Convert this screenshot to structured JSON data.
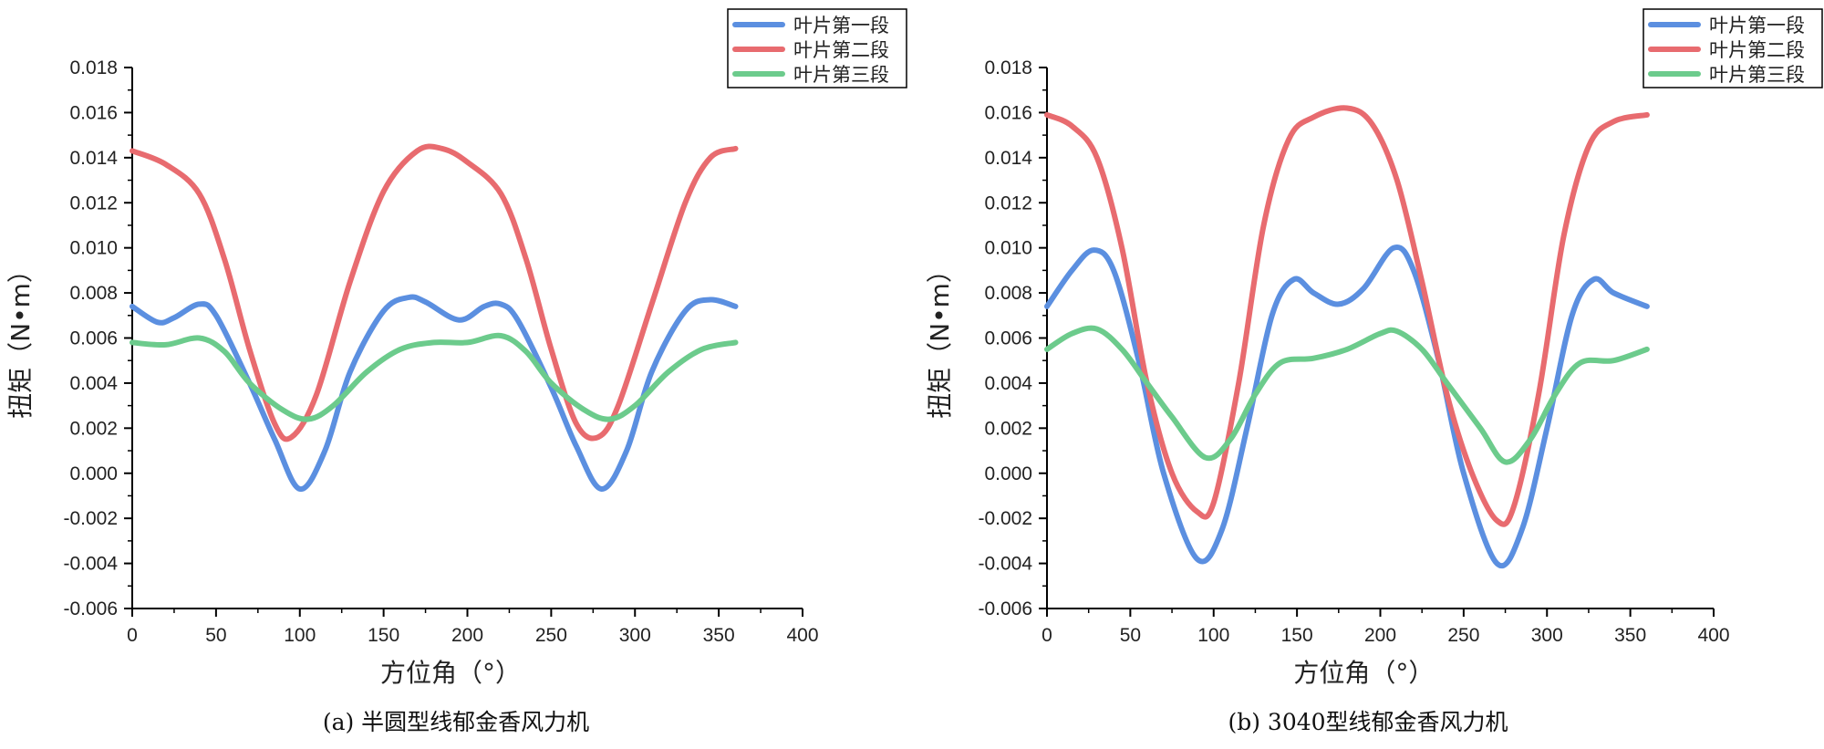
{
  "chart_data": [
    {
      "type": "line",
      "caption": "(a) 半圆型线郁金香风力机",
      "xlabel": "方位角（°）",
      "ylabel": "扭矩（N•m）",
      "xlim": [
        0,
        400
      ],
      "ylim": [
        -0.006,
        0.018
      ],
      "xticks": [
        "0",
        "50",
        "100",
        "150",
        "200",
        "250",
        "300",
        "350",
        "400"
      ],
      "yticks": [
        "-0.006",
        "-0.004",
        "-0.002",
        "0.000",
        "0.002",
        "0.004",
        "0.006",
        "0.008",
        "0.010",
        "0.012",
        "0.014",
        "0.016",
        "0.018"
      ],
      "legend_position": "top-right",
      "series": [
        {
          "name": "叶片第一段",
          "color": "#5b8fe0",
          "x": [
            0,
            15,
            25,
            40,
            50,
            70,
            85,
            100,
            115,
            130,
            150,
            165,
            175,
            195,
            210,
            220,
            230,
            250,
            265,
            280,
            295,
            310,
            330,
            345,
            360
          ],
          "y": [
            0.0074,
            0.0067,
            0.0069,
            0.0075,
            0.007,
            0.004,
            0.0015,
            -0.0007,
            0.001,
            0.0045,
            0.0072,
            0.0078,
            0.0076,
            0.0068,
            0.0074,
            0.0075,
            0.0068,
            0.0038,
            0.0012,
            -0.0007,
            0.001,
            0.0045,
            0.0072,
            0.0077,
            0.0074
          ]
        },
        {
          "name": "叶片第二段",
          "color": "#e86b6f",
          "x": [
            0,
            20,
            40,
            55,
            70,
            85,
            95,
            110,
            130,
            150,
            170,
            185,
            200,
            220,
            235,
            250,
            265,
            278,
            290,
            310,
            330,
            345,
            360
          ],
          "y": [
            0.0143,
            0.0137,
            0.0124,
            0.0095,
            0.0055,
            0.0022,
            0.0016,
            0.0035,
            0.0085,
            0.0125,
            0.0143,
            0.0144,
            0.0138,
            0.0124,
            0.0095,
            0.0055,
            0.0022,
            0.0016,
            0.003,
            0.0075,
            0.012,
            0.014,
            0.0144
          ]
        },
        {
          "name": "叶片第三段",
          "color": "#6ccb8c",
          "x": [
            0,
            20,
            40,
            55,
            70,
            90,
            105,
            120,
            140,
            160,
            180,
            200,
            220,
            235,
            250,
            270,
            285,
            300,
            320,
            340,
            360
          ],
          "y": [
            0.0058,
            0.0057,
            0.006,
            0.0054,
            0.004,
            0.0028,
            0.0024,
            0.003,
            0.0045,
            0.0055,
            0.0058,
            0.0058,
            0.0061,
            0.0054,
            0.004,
            0.0028,
            0.0024,
            0.003,
            0.0045,
            0.0055,
            0.0058
          ]
        }
      ]
    },
    {
      "type": "line",
      "caption": "(b) 3040型线郁金香风力机",
      "xlabel": "方位角（°）",
      "ylabel": "扭矩（N•m）",
      "xlim": [
        0,
        400
      ],
      "ylim": [
        -0.006,
        0.018
      ],
      "xticks": [
        "0",
        "50",
        "100",
        "150",
        "200",
        "250",
        "300",
        "350",
        "400"
      ],
      "yticks": [
        "-0.006",
        "-0.004",
        "-0.002",
        "0.000",
        "0.002",
        "0.004",
        "0.006",
        "0.008",
        "0.010",
        "0.012",
        "0.014",
        "0.016",
        "0.018"
      ],
      "legend_position": "top-right",
      "series": [
        {
          "name": "叶片第一段",
          "color": "#5b8fe0",
          "x": [
            0,
            15,
            28,
            40,
            55,
            70,
            90,
            105,
            120,
            135,
            148,
            160,
            175,
            190,
            208,
            220,
            235,
            250,
            270,
            285,
            300,
            315,
            328,
            340,
            360
          ],
          "y": [
            0.0074,
            0.009,
            0.0099,
            0.009,
            0.005,
            0.0,
            -0.0038,
            -0.0025,
            0.002,
            0.007,
            0.0086,
            0.008,
            0.0075,
            0.0082,
            0.01,
            0.009,
            0.005,
            0.0,
            -0.004,
            -0.0025,
            0.002,
            0.007,
            0.0086,
            0.008,
            0.0074
          ]
        },
        {
          "name": "叶片第二段",
          "color": "#e86b6f",
          "x": [
            0,
            15,
            30,
            45,
            60,
            75,
            90,
            100,
            115,
            130,
            145,
            160,
            180,
            195,
            210,
            225,
            240,
            255,
            270,
            280,
            295,
            310,
            325,
            340,
            360
          ],
          "y": [
            0.0159,
            0.0154,
            0.014,
            0.01,
            0.004,
            0.0,
            -0.0017,
            -0.0013,
            0.004,
            0.011,
            0.0148,
            0.0158,
            0.0162,
            0.0155,
            0.013,
            0.0085,
            0.0035,
            0.0,
            -0.0021,
            -0.0015,
            0.0035,
            0.0105,
            0.0145,
            0.0156,
            0.0159
          ]
        },
        {
          "name": "叶片第三段",
          "color": "#6ccb8c",
          "x": [
            0,
            15,
            30,
            45,
            60,
            75,
            95,
            110,
            125,
            140,
            160,
            180,
            200,
            210,
            225,
            240,
            260,
            275,
            290,
            305,
            320,
            340,
            360
          ],
          "y": [
            0.0055,
            0.0062,
            0.0064,
            0.0055,
            0.004,
            0.0025,
            0.0007,
            0.0015,
            0.0035,
            0.0049,
            0.0051,
            0.0055,
            0.0062,
            0.0063,
            0.0055,
            0.004,
            0.002,
            0.0005,
            0.0015,
            0.0035,
            0.0049,
            0.005,
            0.0055
          ]
        }
      ]
    }
  ]
}
